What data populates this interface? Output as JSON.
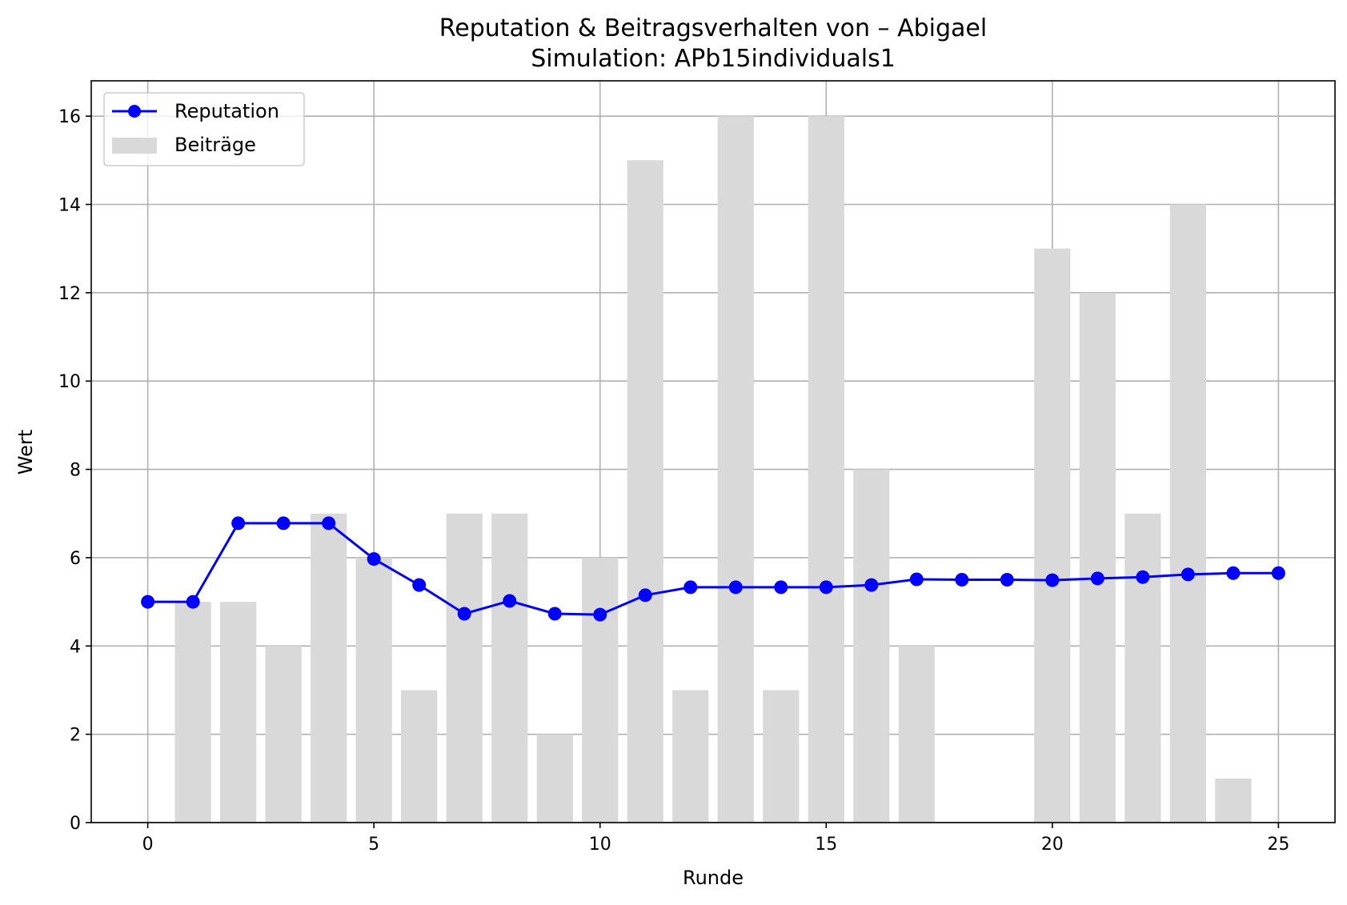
{
  "chart_data": {
    "type": "bar+line",
    "title": "Reputation & Beitragsverhalten von – Abigael",
    "subtitle": "Simulation: APb15individuals1",
    "xlabel": "Runde",
    "ylabel": "Wert",
    "xlim": [
      -1.25,
      26.25
    ],
    "ylim": [
      0,
      16.8
    ],
    "xticks": [
      0,
      5,
      10,
      15,
      20,
      25
    ],
    "yticks": [
      0,
      2,
      4,
      6,
      8,
      10,
      12,
      14,
      16
    ],
    "grid": true,
    "legend_position": "top-left",
    "bars": {
      "name": "Beiträge",
      "color": "#d9d9d9",
      "width": 0.8,
      "x": [
        1,
        2,
        3,
        4,
        5,
        6,
        7,
        8,
        9,
        10,
        11,
        12,
        13,
        14,
        15,
        16,
        17,
        20,
        21,
        22,
        23,
        24
      ],
      "values": [
        5,
        5,
        4,
        7,
        6,
        3,
        7,
        7,
        2,
        6,
        15,
        3,
        16,
        3,
        16,
        8,
        4,
        13,
        12,
        7,
        14,
        1
      ]
    },
    "line": {
      "name": "Reputation",
      "color": "#0000ff",
      "x": [
        0,
        1,
        2,
        3,
        4,
        5,
        6,
        7,
        8,
        9,
        10,
        11,
        12,
        13,
        14,
        15,
        16,
        17,
        18,
        19,
        20,
        21,
        22,
        23,
        24,
        25
      ],
      "values": [
        5.0,
        5.0,
        6.78,
        6.78,
        6.78,
        5.97,
        5.38,
        4.73,
        5.02,
        4.73,
        4.71,
        5.15,
        5.33,
        5.33,
        5.33,
        5.33,
        5.38,
        5.51,
        5.5,
        5.5,
        5.49,
        5.53,
        5.56,
        5.62,
        5.65,
        5.65
      ]
    }
  }
}
